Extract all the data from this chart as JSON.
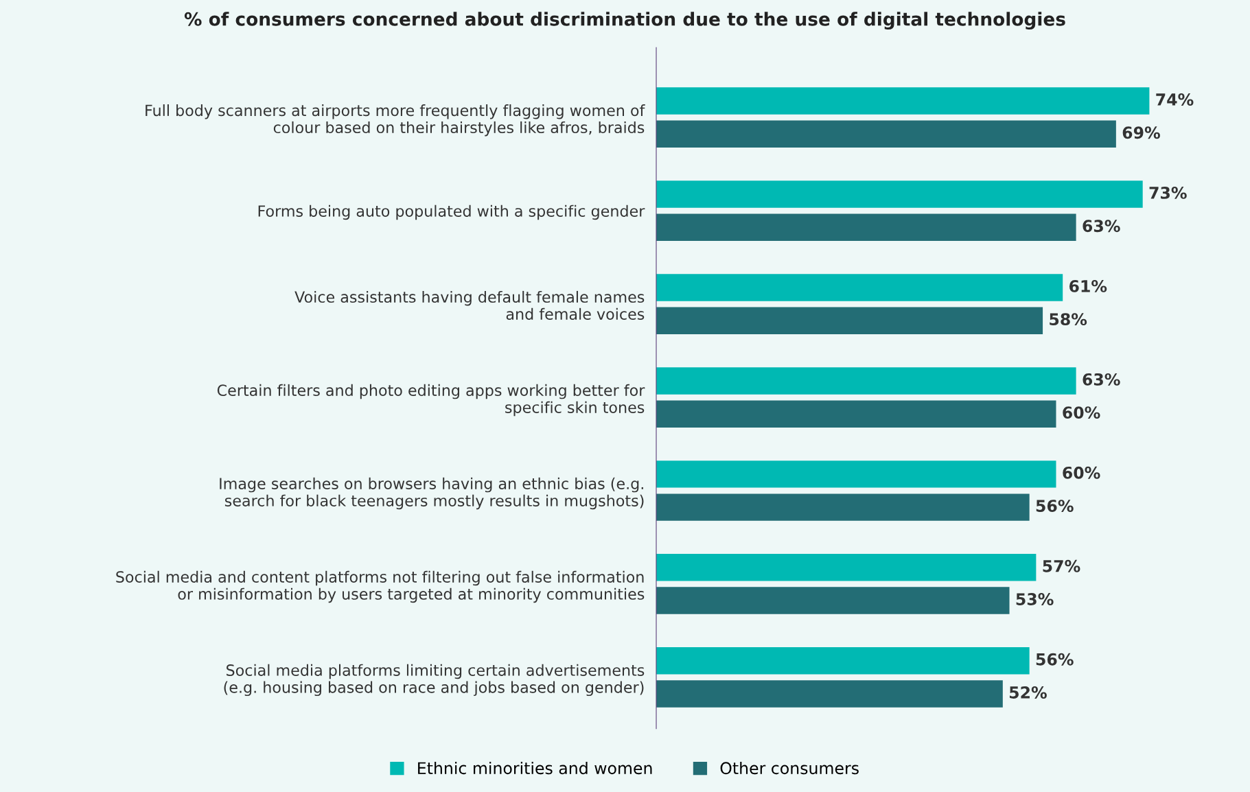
{
  "chart_data": {
    "type": "bar",
    "orientation": "horizontal",
    "title": "% of consumers concerned about discrimination due to the use of digital technologies",
    "categories": [
      "Full body scanners at airports more frequently flagging women of\ncolour based on their hairstyles like afros, braids",
      "Forms being auto populated with a specific gender",
      "Voice assistants having default female names\nand female voices",
      "Certain filters and photo editing apps working better for\nspecific skin tones",
      "Image searches on browsers having an ethnic bias (e.g.\nsearch for black teenagers mostly results in mugshots)",
      "Social media and content platforms not filtering out false information\nor misinformation by users targeted at minority communities",
      "Social media platforms limiting certain advertisements\n(e.g. housing based on race and jobs based on gender)"
    ],
    "series": [
      {
        "name": "Ethnic minorities and women",
        "color": "#00b9b3",
        "values": [
          74,
          73,
          61,
          63,
          60,
          57,
          56
        ],
        "value_labels": [
          "74%",
          "73%",
          "61%",
          "63%",
          "60%",
          "57%",
          "56%"
        ]
      },
      {
        "name": "Other consumers",
        "color": "#236d75",
        "values": [
          69,
          63,
          58,
          60,
          56,
          53,
          52
        ],
        "value_labels": [
          "69%",
          "63%",
          "58%",
          "60%",
          "56%",
          "53%",
          "52%"
        ]
      }
    ],
    "legend": "bottom",
    "grid": false
  }
}
